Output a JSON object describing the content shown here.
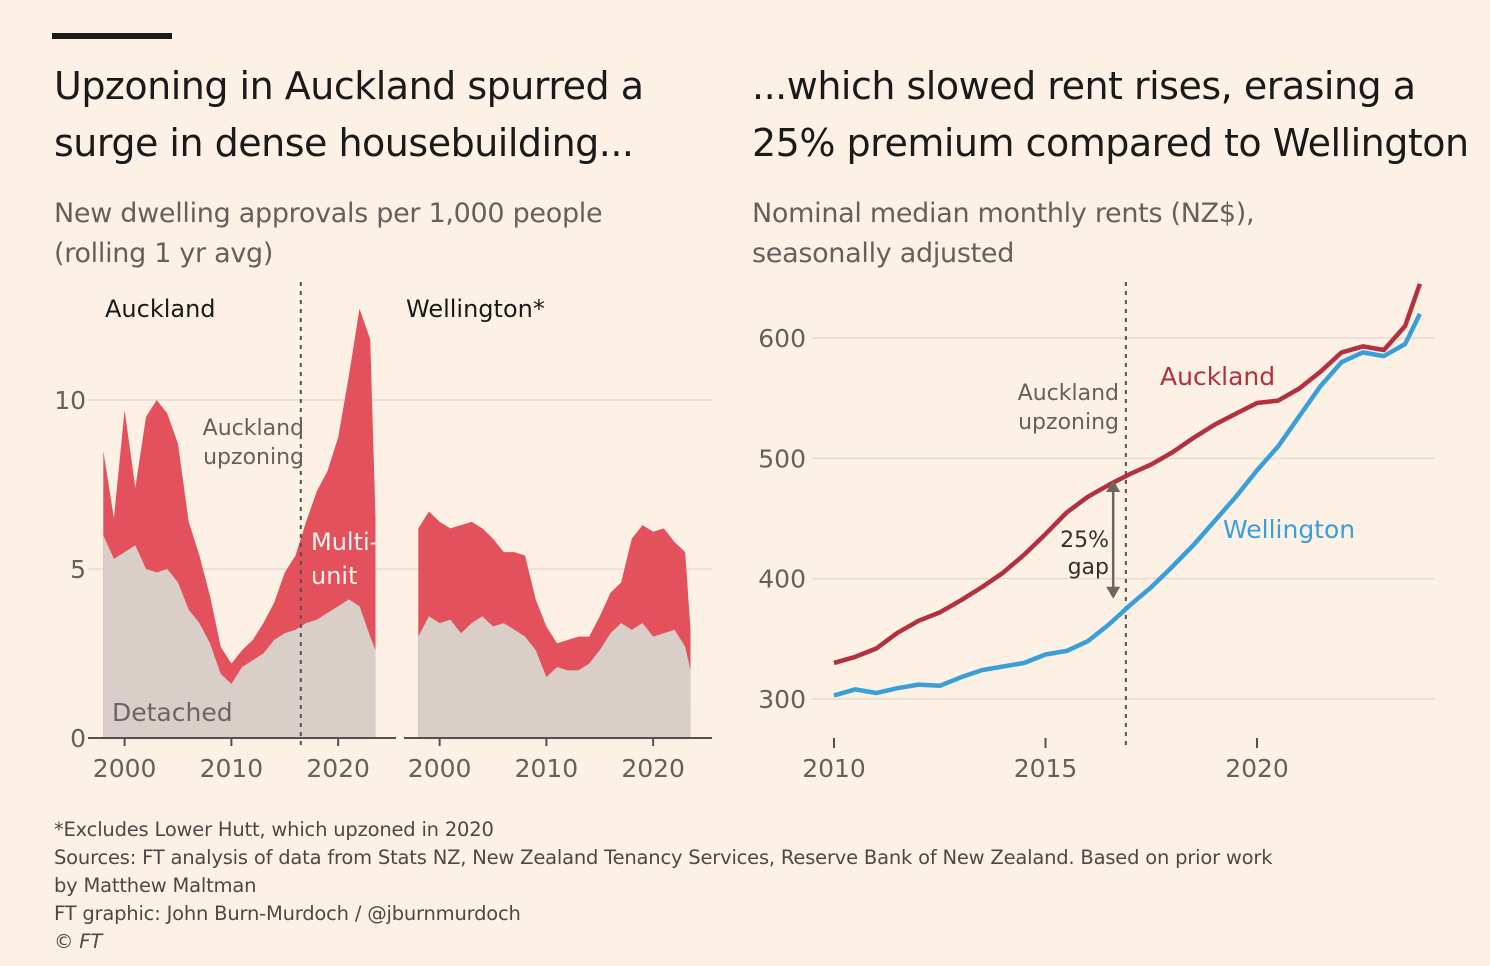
{
  "titles": {
    "left": "Upzoning in Auckland spurred a surge in dense housebuilding...",
    "right": "...which slowed rent rises, erasing a 25% premium compared to Wellington"
  },
  "subtitles": {
    "left": "New dwelling approvals per 1,000 people (rolling 1 yr avg)",
    "right": "Nominal median monthly rents (NZ$), seasonally adjusted"
  },
  "colors": {
    "background": "#fdf1e6",
    "multi_unit": "#e3525c",
    "detached": "#d9cfc8",
    "auckland_line": "#b3303e",
    "wellington_line": "#3a9fd9",
    "grid": "#e6dbd1",
    "text_muted": "#66605c"
  },
  "chart_data": [
    {
      "id": "approvals",
      "type": "area",
      "title": "Upzoning in Auckland spurred a surge in dense housebuilding...",
      "subtitle": "New dwelling approvals per 1,000 people (rolling 1 yr avg)",
      "ylim": [
        0,
        13
      ],
      "yticks": [
        0,
        5,
        10
      ],
      "ytick_labels": [
        "0",
        "5",
        "10"
      ],
      "grid": true,
      "panels": [
        {
          "name": "Auckland",
          "xlim": [
            1997.6,
            2024.2
          ],
          "xticks": [
            2000,
            2010,
            2020
          ],
          "xtick_labels": [
            "2000",
            "2010",
            "2020"
          ],
          "annotation": {
            "label_lines": [
              "Auckland",
              "upzoning"
            ],
            "x": 2016.5
          },
          "series": [
            {
              "name": "Detached",
              "label": "Detached",
              "x": [
                1998,
                1999,
                2000,
                2001,
                2002,
                2003,
                2004,
                2005,
                2006,
                2007,
                2008,
                2009,
                2010,
                2011,
                2012,
                2013,
                2014,
                2015,
                2016,
                2017,
                2018,
                2019,
                2020,
                2021,
                2022,
                2023,
                2023.5
              ],
              "values": [
                6.0,
                5.3,
                5.5,
                5.7,
                5.0,
                4.9,
                5.0,
                4.6,
                3.8,
                3.4,
                2.8,
                1.9,
                1.6,
                2.1,
                2.3,
                2.5,
                2.9,
                3.1,
                3.2,
                3.4,
                3.5,
                3.7,
                3.9,
                4.1,
                3.9,
                3.0,
                2.6
              ]
            },
            {
              "name": "Multi-unit",
              "label_lines": [
                "Multi-",
                "unit"
              ],
              "x": [
                1998,
                1999,
                2000,
                2001,
                2002,
                2003,
                2004,
                2005,
                2006,
                2007,
                2008,
                2009,
                2010,
                2011,
                2012,
                2013,
                2014,
                2015,
                2016,
                2017,
                2018,
                2019,
                2020,
                2021,
                2022,
                2023,
                2023.5
              ],
              "values": [
                2.5,
                1.2,
                4.2,
                1.7,
                4.5,
                5.1,
                4.6,
                4.1,
                2.6,
                2.0,
                1.4,
                0.8,
                0.6,
                0.5,
                0.6,
                0.9,
                1.1,
                1.8,
                2.2,
                3.0,
                3.8,
                4.2,
                5.0,
                6.6,
                8.8,
                8.8,
                3.9
              ]
            }
          ]
        },
        {
          "name": "Wellington*",
          "xlim": [
            1997.6,
            2024.2
          ],
          "xticks": [
            2000,
            2010,
            2020
          ],
          "xtick_labels": [
            "2000",
            "2010",
            "2020"
          ],
          "series": [
            {
              "name": "Detached",
              "x": [
                1998,
                1999,
                2000,
                2001,
                2002,
                2003,
                2004,
                2005,
                2006,
                2007,
                2008,
                2009,
                2010,
                2011,
                2012,
                2013,
                2014,
                2015,
                2016,
                2017,
                2018,
                2019,
                2020,
                2021,
                2022,
                2023,
                2023.5
              ],
              "values": [
                3.0,
                3.6,
                3.4,
                3.5,
                3.1,
                3.4,
                3.6,
                3.3,
                3.4,
                3.2,
                3.0,
                2.6,
                1.8,
                2.1,
                2.0,
                2.0,
                2.2,
                2.6,
                3.1,
                3.4,
                3.2,
                3.4,
                3.0,
                3.1,
                3.2,
                2.7,
                2.0
              ]
            },
            {
              "name": "Multi-unit",
              "x": [
                1998,
                1999,
                2000,
                2001,
                2002,
                2003,
                2004,
                2005,
                2006,
                2007,
                2008,
                2009,
                2010,
                2011,
                2012,
                2013,
                2014,
                2015,
                2016,
                2017,
                2018,
                2019,
                2020,
                2021,
                2022,
                2023,
                2023.5
              ],
              "values": [
                3.2,
                3.1,
                3.0,
                2.7,
                3.2,
                3.0,
                2.6,
                2.6,
                2.1,
                2.3,
                2.4,
                1.5,
                1.5,
                0.7,
                0.9,
                1.0,
                0.8,
                1.0,
                1.2,
                1.2,
                2.7,
                2.9,
                3.1,
                3.1,
                2.6,
                2.8,
                1.2
              ]
            }
          ]
        }
      ]
    },
    {
      "id": "rents",
      "type": "line",
      "title": "...which slowed rent rises, erasing a 25% premium compared to Wellington",
      "subtitle": "Nominal median monthly rents (NZ$), seasonally adjusted",
      "xlim": [
        2009.4,
        2024.4
      ],
      "ylim": [
        280,
        650
      ],
      "yticks": [
        300,
        400,
        500,
        600
      ],
      "ytick_labels": [
        "300",
        "400",
        "500",
        "600"
      ],
      "xticks": [
        2010,
        2015,
        2020
      ],
      "xtick_labels": [
        "2010",
        "2015",
        "2020"
      ],
      "grid": true,
      "annotation": {
        "label_lines": [
          "Auckland",
          "upzoning"
        ],
        "x": 2016.9
      },
      "gap": {
        "label_lines": [
          "25%",
          "gap"
        ],
        "x": 2016.6,
        "y_top": 487,
        "y_bottom": 380
      },
      "series": [
        {
          "name": "Auckland",
          "label": "Auckland",
          "x": [
            2010.0,
            2010.5,
            2011.0,
            2011.5,
            2012.0,
            2012.5,
            2013.0,
            2013.5,
            2014.0,
            2014.5,
            2015.0,
            2015.5,
            2016.0,
            2016.5,
            2017.0,
            2017.5,
            2018.0,
            2018.5,
            2019.0,
            2019.5,
            2020.0,
            2020.5,
            2021.0,
            2021.5,
            2022.0,
            2022.5,
            2023.0,
            2023.5,
            2023.85
          ],
          "values": [
            330,
            335,
            342,
            355,
            365,
            372,
            382,
            393,
            405,
            420,
            437,
            455,
            468,
            478,
            487,
            495,
            505,
            517,
            528,
            537,
            546,
            548,
            558,
            572,
            588,
            593,
            590,
            610,
            645
          ]
        },
        {
          "name": "Wellington",
          "label": "Wellington",
          "x": [
            2010.0,
            2010.5,
            2011.0,
            2011.5,
            2012.0,
            2012.5,
            2013.0,
            2013.5,
            2014.0,
            2014.5,
            2015.0,
            2015.5,
            2016.0,
            2016.5,
            2017.0,
            2017.5,
            2018.0,
            2018.5,
            2019.0,
            2019.5,
            2020.0,
            2020.5,
            2021.0,
            2021.5,
            2022.0,
            2022.5,
            2023.0,
            2023.5,
            2023.85
          ],
          "values": [
            303,
            308,
            305,
            309,
            312,
            311,
            318,
            324,
            327,
            330,
            337,
            340,
            348,
            362,
            378,
            393,
            410,
            428,
            448,
            468,
            490,
            510,
            535,
            560,
            580,
            588,
            585,
            595,
            620
          ]
        }
      ]
    }
  ],
  "footer": {
    "note": "*Excludes Lower Hutt, which upzoned in 2020",
    "sources_line1": "Sources: FT analysis of data from Stats NZ, New Zealand Tenancy Services, Reserve Bank of New Zealand. Based on prior work",
    "sources_line2": "by Matthew Maltman",
    "credit": "FT graphic: John Burn-Murdoch / @jburnmurdoch",
    "copyright": "© FT"
  }
}
